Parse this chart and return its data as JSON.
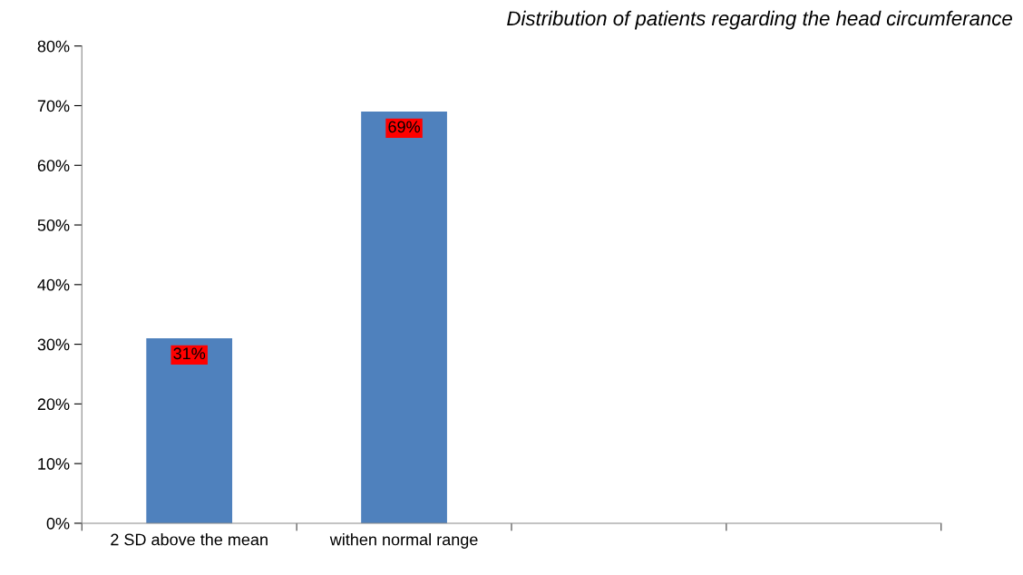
{
  "chart_data": {
    "type": "bar",
    "title": "Distribution of patients regarding the head circumferance",
    "categories": [
      "2 SD above the mean",
      "withen normal range",
      null,
      null
    ],
    "series": [
      {
        "color": "#4f81bd",
        "values": [
          31,
          69,
          null,
          null
        ],
        "value_labels": [
          "31%",
          "69%",
          null,
          null
        ]
      }
    ],
    "ylim": [
      0,
      80
    ],
    "yticks": [
      {
        "value": 0,
        "label": "0%"
      },
      {
        "value": 10,
        "label": "10%"
      },
      {
        "value": 20,
        "label": "20%"
      },
      {
        "value": 30,
        "label": "30%"
      },
      {
        "value": 40,
        "label": "40%"
      },
      {
        "value": 50,
        "label": "50%"
      },
      {
        "value": 60,
        "label": "60%"
      },
      {
        "value": 70,
        "label": "70%"
      },
      {
        "value": 80,
        "label": "80%"
      }
    ],
    "grid": false,
    "legend": false
  }
}
